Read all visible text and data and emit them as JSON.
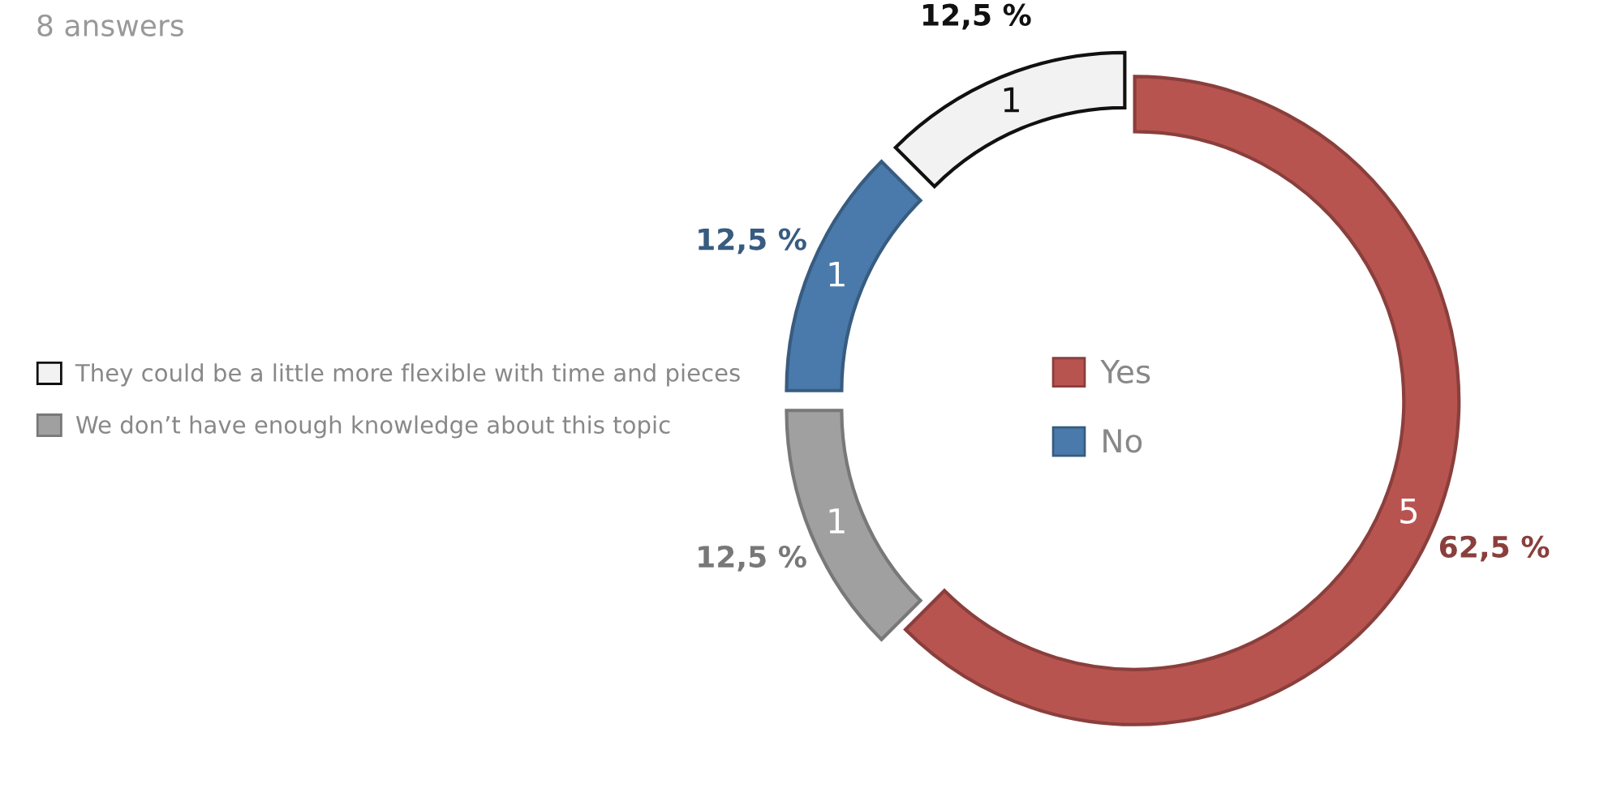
{
  "chart_data": {
    "type": "donut",
    "title": "8 answers",
    "categories": [
      "Yes",
      "We don’t have enough knowledge about this topic",
      "No",
      "They could be a little more flexible with time and pieces"
    ],
    "values": [
      62.5,
      12.5,
      12.5,
      12.5
    ],
    "colors": [
      "#b85450",
      "#a0a0a0",
      "#4a7aab",
      "#f2f2f2"
    ],
    "value_labels": [
      "62,5 %",
      "12,5 %",
      "12,5 %",
      "12,5 %"
    ],
    "annotations": [
      "5",
      "1",
      "1",
      "1"
    ],
    "legend": "left"
  }
}
